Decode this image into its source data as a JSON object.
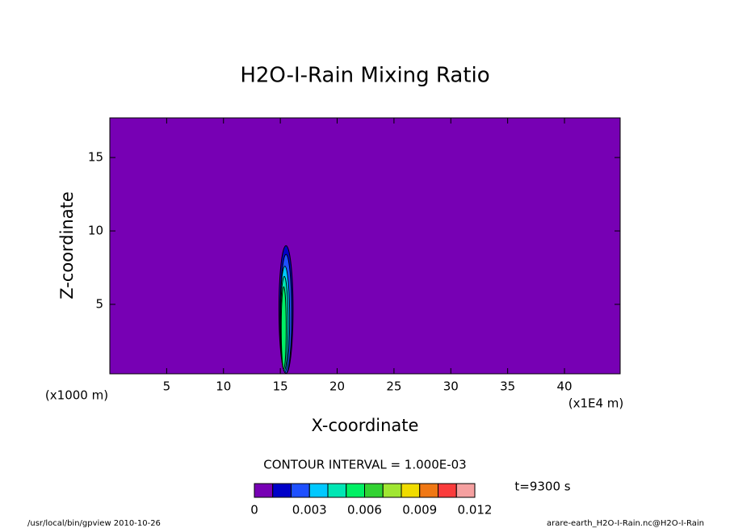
{
  "chart_data": {
    "type": "contour",
    "title": "H2O-I-Rain Mixing Ratio",
    "xlabel": "X-coordinate",
    "ylabel": "Z-coordinate",
    "xunit": "(x1E4 m)",
    "yunit": "(x1000 m)",
    "xlim": [
      0,
      44.9
    ],
    "ylim": [
      0.27,
      17.7
    ],
    "xticks": [
      5,
      10,
      15,
      20,
      25,
      30,
      35,
      40
    ],
    "yticks": [
      5,
      10,
      15
    ],
    "background_color": "#7700b4",
    "contours": [
      {
        "level": 0.001,
        "x": 15.5,
        "z": 4.65,
        "rx": 0.62,
        "rz": 4.35
      },
      {
        "level": 0.002,
        "x": 15.5,
        "z": 4.35,
        "rx": 0.5,
        "rz": 4.05
      },
      {
        "level": 0.003,
        "x": 15.4,
        "z": 4.0,
        "rx": 0.42,
        "rz": 3.6
      },
      {
        "level": 0.004,
        "x": 15.35,
        "z": 3.7,
        "rx": 0.33,
        "rz": 3.2
      },
      {
        "level": 0.005,
        "x": 15.3,
        "z": 3.4,
        "rx": 0.22,
        "rz": 2.8
      }
    ],
    "contour_interval": "CONTOUR INTERVAL = 1.000E-03",
    "time_label": "t=9300 s",
    "levels": [
      0,
      0.001,
      0.002,
      0.003,
      0.004,
      0.005,
      0.006,
      0.007,
      0.008,
      0.009,
      0.01,
      0.011,
      0.012
    ],
    "colors": [
      "#7700b4",
      "#0000c8",
      "#1e50ff",
      "#00c8ff",
      "#00e6b4",
      "#00f064",
      "#32d232",
      "#a0e632",
      "#f0dc00",
      "#f07814",
      "#fa3c3c",
      "#f5a0a0"
    ],
    "colorbar_ticks": [
      0,
      0.003,
      0.006,
      0.009,
      0.012
    ],
    "footer_left": "/usr/local/bin/gpview  2010-10-26",
    "footer_right": "arare-earth_H2O-I-Rain.nc@H2O-I-Rain"
  }
}
